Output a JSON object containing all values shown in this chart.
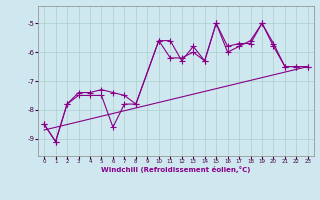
{
  "xlabel": "Windchill (Refroidissement éolien,°C)",
  "bg_color": "#cfe8f0",
  "grid_color": "#aacfcc",
  "line_color": "#880088",
  "xlim": [
    -0.5,
    23.5
  ],
  "ylim": [
    -9.6,
    -4.4
  ],
  "yticks": [
    -9,
    -8,
    -7,
    -6,
    -5
  ],
  "xticks": [
    0,
    1,
    2,
    3,
    4,
    5,
    6,
    7,
    8,
    9,
    10,
    11,
    12,
    13,
    14,
    15,
    16,
    17,
    18,
    19,
    20,
    21,
    22,
    23
  ],
  "series1_x": [
    0,
    1,
    2,
    3,
    4,
    5,
    6,
    7,
    8,
    10,
    11,
    12,
    13,
    14,
    15,
    16,
    17,
    18,
    19,
    20,
    21,
    22,
    23
  ],
  "series1_y": [
    -8.5,
    -9.1,
    -7.8,
    -7.5,
    -7.5,
    -7.5,
    -8.6,
    -7.8,
    -7.8,
    -5.6,
    -6.2,
    -6.2,
    -6.0,
    -6.3,
    -5.0,
    -6.0,
    -5.8,
    -5.6,
    -5.0,
    -5.8,
    -6.5,
    -6.5,
    -6.5
  ],
  "series2_x": [
    0,
    1,
    2,
    3,
    4,
    5,
    6,
    7,
    8,
    10,
    11,
    12,
    13,
    14,
    15,
    16,
    17,
    18,
    19,
    20,
    21,
    22,
    23
  ],
  "series2_y": [
    -8.5,
    -9.1,
    -7.8,
    -7.4,
    -7.4,
    -7.3,
    -7.4,
    -7.5,
    -7.8,
    -5.6,
    -5.6,
    -6.3,
    -5.8,
    -6.3,
    -5.0,
    -5.8,
    -5.7,
    -5.7,
    -5.0,
    -5.7,
    -6.5,
    -6.5,
    -6.5
  ],
  "line3_x0": 0,
  "line3_x1": 23,
  "line3_y0": -8.7,
  "line3_y1": -6.5,
  "marker": "+",
  "marker_size": 4.5
}
